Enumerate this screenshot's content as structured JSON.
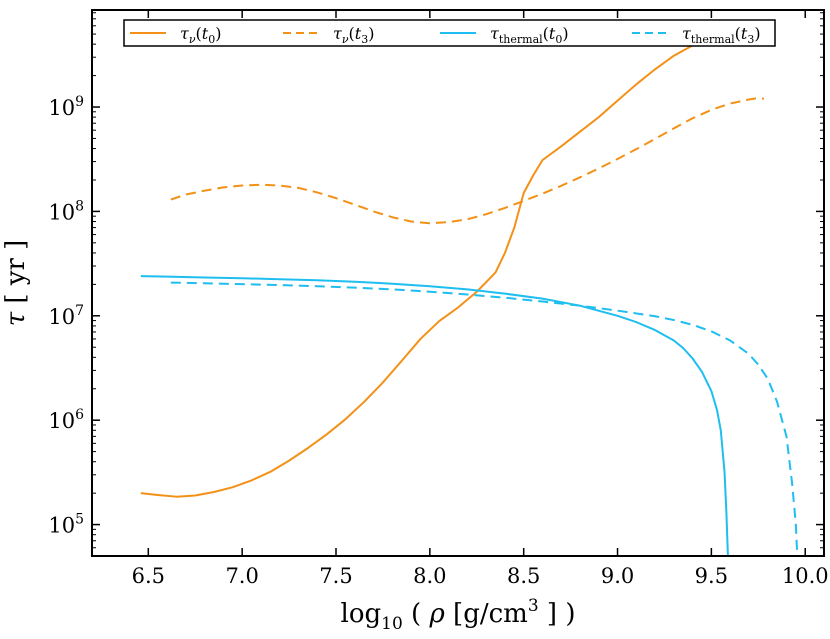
{
  "chart_data": {
    "type": "line",
    "title": "",
    "xlabel": "log10 ( ρ [g/cm^3 ] )",
    "ylabel": "τ [ yr ]",
    "xscale": "linear",
    "yscale": "log",
    "xlim": [
      6.2,
      10.1
    ],
    "ylim": [
      50000,
      8500000000
    ],
    "x_ticks": [
      6.5,
      7.0,
      7.5,
      8.0,
      8.5,
      9.0,
      9.5,
      10.0
    ],
    "x_tick_labels": [
      "6.5",
      "7.0",
      "7.5",
      "8.0",
      "8.5",
      "9.0",
      "9.5",
      "10.0"
    ],
    "y_ticks": [
      100000,
      1000000,
      10000000,
      100000000,
      1000000000
    ],
    "y_tick_labels": [
      {
        "base": "10",
        "exp": "5"
      },
      {
        "base": "10",
        "exp": "6"
      },
      {
        "base": "10",
        "exp": "7"
      },
      {
        "base": "10",
        "exp": "8"
      },
      {
        "base": "10",
        "exp": "9"
      }
    ],
    "grid": false,
    "legend_position": "top",
    "series": [
      {
        "name": "τν(t0)",
        "legend": {
          "sym": "τ",
          "sub": "ν",
          "arg": "t",
          "argsub": "0"
        },
        "color": "#f39117",
        "dash": "solid",
        "x": [
          6.46,
          6.55,
          6.65,
          6.75,
          6.85,
          6.95,
          7.05,
          7.15,
          7.25,
          7.35,
          7.45,
          7.55,
          7.65,
          7.75,
          7.85,
          7.95,
          8.05,
          8.15,
          8.25,
          8.3,
          8.35,
          8.4,
          8.45,
          8.5,
          8.55,
          8.6,
          8.7,
          8.8,
          8.9,
          9.0,
          9.1,
          9.2,
          9.3,
          9.4,
          9.5,
          9.55
        ],
        "y": [
          200000,
          192000,
          185000,
          190000,
          205000,
          228000,
          265000,
          320000,
          410000,
          540000,
          730000,
          1020000,
          1500000,
          2300000,
          3700000,
          6000000,
          8900000,
          12000000,
          17000000,
          21000000,
          26000000,
          40000000,
          70000000,
          150000000,
          220000000,
          310000000,
          420000000,
          580000000,
          800000000,
          1150000000,
          1650000000,
          2300000000,
          3100000000,
          3900000000,
          4400000000,
          4500000000
        ]
      },
      {
        "name": "τν(t3)",
        "legend": {
          "sym": "τ",
          "sub": "ν",
          "arg": "t",
          "argsub": "3"
        },
        "color": "#f39117",
        "dash": "dashed",
        "x": [
          6.62,
          6.7,
          6.8,
          6.9,
          7.0,
          7.1,
          7.2,
          7.3,
          7.4,
          7.5,
          7.6,
          7.7,
          7.8,
          7.9,
          8.0,
          8.1,
          8.2,
          8.3,
          8.4,
          8.5,
          8.6,
          8.7,
          8.8,
          8.9,
          9.0,
          9.1,
          9.2,
          9.3,
          9.4,
          9.5,
          9.6,
          9.7,
          9.75,
          9.78
        ],
        "y": [
          130000000,
          145000000,
          158000000,
          170000000,
          177000000,
          180000000,
          177000000,
          168000000,
          152000000,
          134000000,
          116000000,
          100000000,
          88000000,
          80000000,
          77000000,
          79000000,
          84000000,
          94000000,
          108000000,
          126000000,
          148000000,
          176000000,
          212000000,
          258000000,
          318000000,
          395000000,
          495000000,
          625000000,
          780000000,
          940000000,
          1080000000,
          1180000000,
          1220000000,
          1200000000
        ]
      },
      {
        "name": "τthermal(t0)",
        "legend": {
          "sym": "τ",
          "sub": "thermal",
          "arg": "t",
          "argsub": "0"
        },
        "color": "#1ebef0",
        "dash": "solid",
        "x": [
          6.46,
          6.6,
          6.8,
          7.0,
          7.2,
          7.4,
          7.6,
          7.8,
          8.0,
          8.2,
          8.4,
          8.6,
          8.8,
          9.0,
          9.1,
          9.2,
          9.3,
          9.35,
          9.4,
          9.45,
          9.5,
          9.53,
          9.55,
          9.57,
          9.58,
          9.59
        ],
        "y": [
          24000000,
          23700000,
          23300000,
          22900000,
          22400000,
          21900000,
          21200000,
          20300000,
          19200000,
          17900000,
          16300000,
          14600000,
          12500000,
          10000000,
          8700000,
          7300000,
          5800000,
          4900000,
          3900000,
          2900000,
          1900000,
          1250000,
          800000,
          320000,
          130000,
          40000
        ]
      },
      {
        "name": "τthermal(t3)",
        "legend": {
          "sym": "τ",
          "sub": "thermal",
          "arg": "t",
          "argsub": "3"
        },
        "color": "#1ebef0",
        "dash": "dashed",
        "x": [
          6.62,
          6.8,
          7.0,
          7.2,
          7.4,
          7.6,
          7.8,
          8.0,
          8.2,
          8.4,
          8.6,
          8.8,
          9.0,
          9.2,
          9.3,
          9.4,
          9.5,
          9.6,
          9.7,
          9.75,
          9.8,
          9.85,
          9.9,
          9.93,
          9.95,
          9.96
        ],
        "y": [
          20800000,
          20500000,
          20100000,
          19700000,
          19200000,
          18600000,
          17900000,
          17000000,
          16000000,
          14900000,
          13700000,
          12500000,
          11200000,
          9900000,
          9100000,
          8200000,
          7100000,
          5800000,
          4300000,
          3400000,
          2500000,
          1500000,
          700000,
          250000,
          100000,
          40000
        ]
      }
    ]
  }
}
